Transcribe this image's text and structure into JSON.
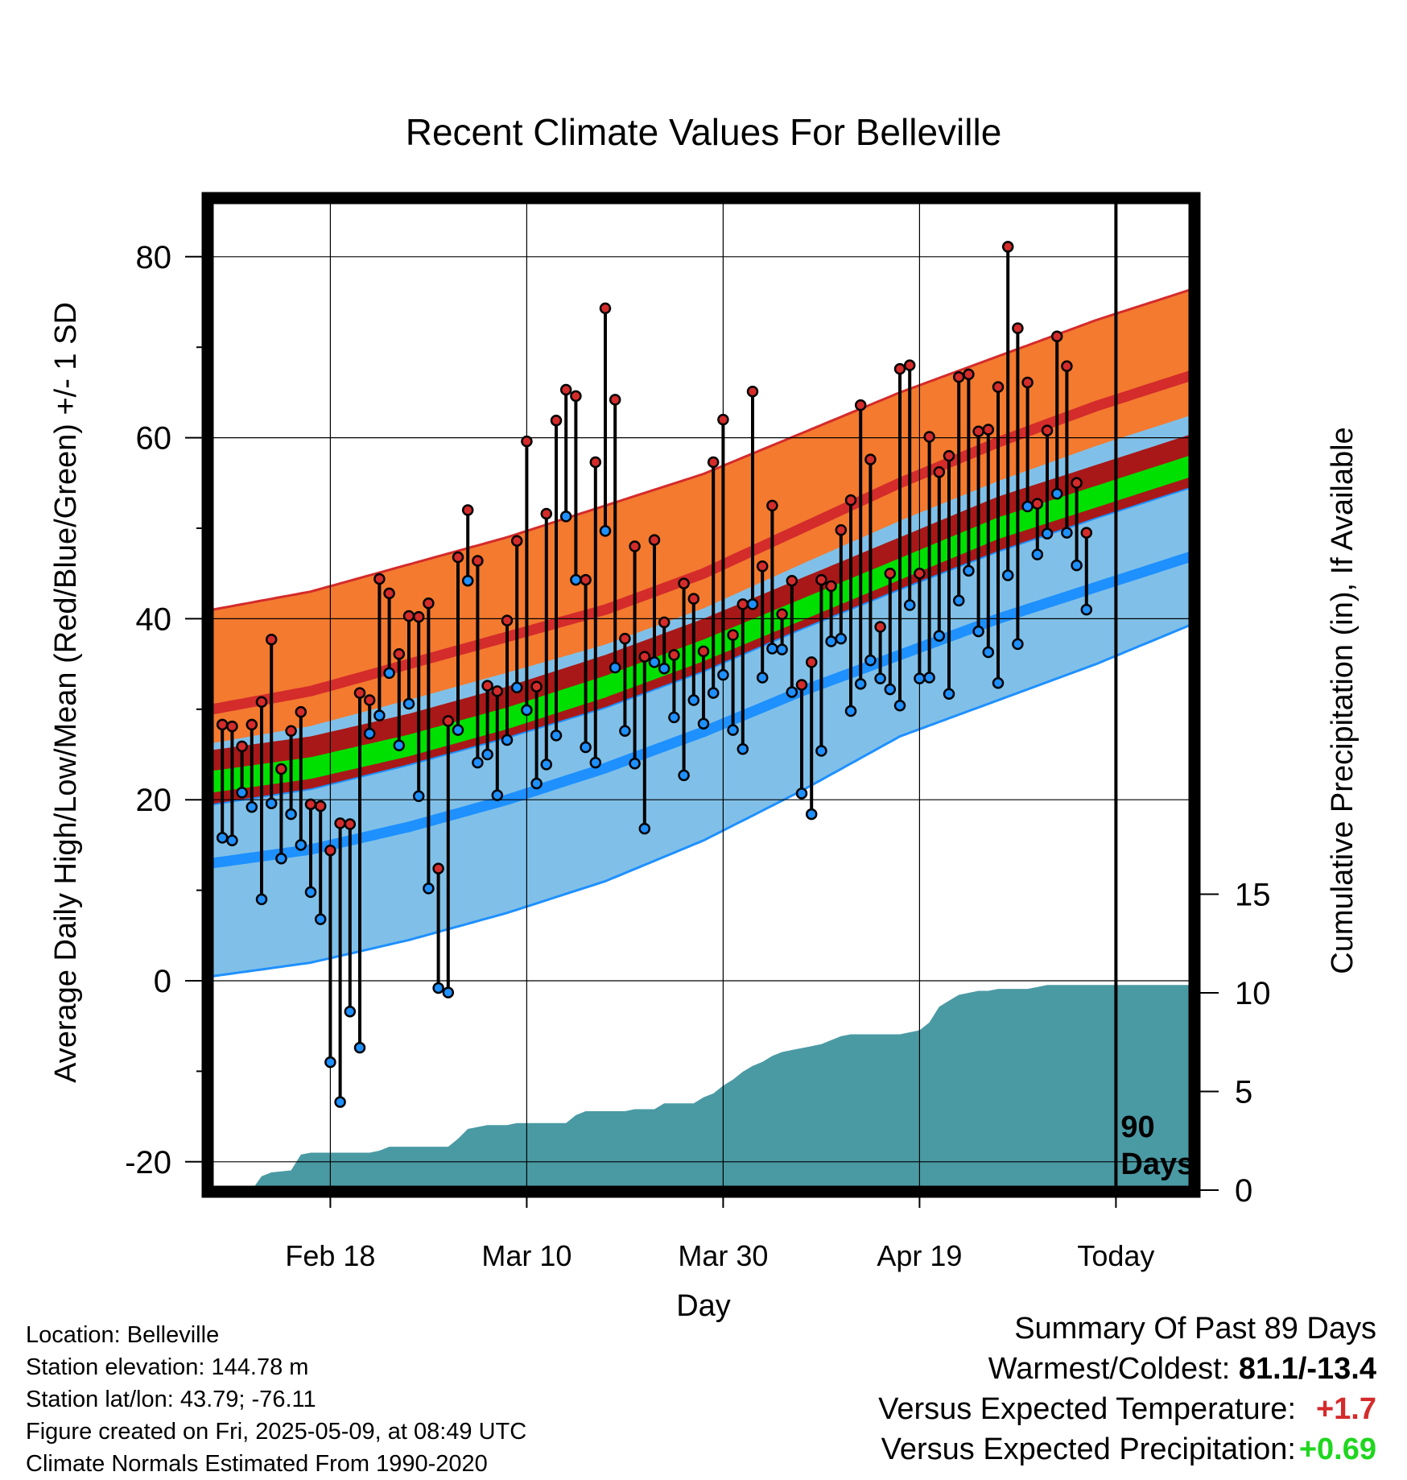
{
  "chart_data": {
    "type": "line",
    "title": "Recent Climate Values For Belleville",
    "xlabel": "Day",
    "ylabel": "Average Daily High/Low/Mean (Red/Blue/Green) +/- 1 SD",
    "y2label": "Cumulative Precipitation (in), If Available",
    "ylim": [
      -23,
      88
    ],
    "y2lim": [
      0,
      32
    ],
    "xlim": [
      0,
      100
    ],
    "x_day_of_first_point": 1,
    "yticks": [
      -20,
      0,
      20,
      40,
      60,
      80
    ],
    "y2ticks": [
      0,
      5,
      10,
      15
    ],
    "xticks": [
      {
        "day": 12,
        "label": "Feb 18"
      },
      {
        "day": 32,
        "label": "Mar 10"
      },
      {
        "day": 52,
        "label": "Mar 30"
      },
      {
        "day": 72,
        "label": "Apr 19"
      },
      {
        "day": 92,
        "label": "Today"
      }
    ],
    "today_day": 92,
    "today_label_lines": [
      "90",
      "Days"
    ],
    "grid": true,
    "colors": {
      "high_band": "#f37a2f",
      "high_edge": "#d42b2b",
      "high_mean": "#d42b2b",
      "low_band": "#80c0e8",
      "low_edge": "#1e90ff",
      "low_mean": "#1e90ff",
      "mean_band": "#00e000",
      "overlap_band": "#a81818",
      "precip": "#4a9aa4",
      "high_dot": "#d42b2b",
      "low_dot": "#1e90ff"
    },
    "normals": {
      "days": [
        0,
        10,
        20,
        30,
        40,
        50,
        60,
        70,
        80,
        90,
        100
      ],
      "high_mean": [
        30,
        32,
        35,
        38,
        41,
        45,
        50,
        55,
        59.5,
        63.5,
        67
      ],
      "high_upper": [
        41,
        43,
        46,
        49,
        52.5,
        56,
        60.5,
        65,
        69,
        73,
        76.5
      ],
      "low_mean": [
        13,
        14.5,
        17,
        20,
        23.5,
        27.5,
        32,
        36,
        40,
        43.5,
        47
      ],
      "low_lower": [
        0.5,
        2,
        4.5,
        7.5,
        11,
        15.5,
        21,
        27,
        31,
        35,
        39.5
      ],
      "mean_line": [
        22,
        23.5,
        26,
        29,
        32.5,
        36.5,
        41,
        45.5,
        50,
        53.5,
        57
      ]
    },
    "series": [
      {
        "name": "High",
        "values": [
          28.3,
          28.1,
          25.9,
          28.3,
          30.8,
          37.7,
          23.4,
          27.6,
          29.7,
          19.5,
          19.3,
          14.4,
          17.4,
          17.3,
          31.8,
          31.0,
          44.4,
          42.8,
          36.1,
          40.3,
          40.2,
          41.7,
          12.4,
          28.7,
          46.8,
          52.0,
          46.4,
          32.6,
          32.0,
          39.8,
          48.6,
          59.6,
          32.5,
          51.6,
          61.9,
          65.3,
          64.6,
          44.3,
          57.3,
          74.3,
          64.2,
          37.8,
          48.0,
          35.8,
          48.7,
          39.6,
          36.0,
          43.9,
          42.2,
          36.4,
          57.3,
          62.0,
          38.2,
          41.6,
          65.1,
          45.8,
          52.5,
          40.5,
          44.2,
          32.7,
          35.2,
          44.3,
          43.6,
          49.8,
          53.1,
          63.6,
          57.6,
          39.1,
          45.0,
          67.6,
          68.0,
          45.0,
          60.1,
          56.2,
          58.0,
          66.7,
          67.0,
          60.7,
          60.9,
          65.6,
          81.1,
          72.1,
          66.1,
          52.7,
          60.8,
          71.2,
          67.9,
          55.0,
          49.5
        ]
      },
      {
        "name": "Low",
        "values": [
          15.8,
          15.5,
          20.8,
          19.2,
          9.0,
          19.6,
          13.5,
          18.4,
          15.0,
          9.8,
          6.8,
          -9.0,
          -13.4,
          -3.4,
          -7.4,
          27.3,
          29.3,
          34.0,
          26.0,
          30.6,
          20.4,
          10.2,
          -0.8,
          -1.3,
          27.7,
          44.2,
          24.1,
          25.0,
          20.5,
          26.6,
          32.4,
          29.9,
          21.8,
          23.9,
          27.1,
          51.3,
          44.3,
          25.8,
          24.1,
          49.7,
          34.6,
          27.6,
          24.0,
          16.8,
          35.2,
          34.5,
          29.1,
          22.7,
          31.0,
          28.4,
          31.8,
          33.8,
          27.7,
          25.6,
          41.6,
          33.5,
          36.7,
          36.6,
          31.9,
          20.7,
          18.4,
          25.4,
          37.5,
          37.8,
          29.8,
          32.8,
          35.4,
          33.4,
          32.2,
          30.4,
          41.5,
          33.4,
          33.5,
          38.1,
          31.7,
          42.0,
          45.3,
          38.6,
          36.3,
          32.9,
          44.8,
          37.2,
          52.4,
          47.1,
          49.4,
          53.8,
          49.5,
          45.9,
          41.0
        ]
      }
    ],
    "precip_cumulative": {
      "days": [
        0,
        4,
        5,
        6,
        8,
        9,
        10,
        11,
        12,
        13,
        14,
        15,
        16,
        17,
        18,
        19,
        20,
        21,
        22,
        23,
        24,
        25,
        26,
        27,
        28,
        29,
        30,
        31,
        32,
        33,
        34,
        35,
        36,
        37,
        38,
        39,
        40,
        41,
        42,
        43,
        44,
        45,
        46,
        47,
        48,
        49,
        50,
        51,
        52,
        53,
        54,
        55,
        56,
        57,
        58,
        59,
        60,
        61,
        62,
        63,
        64,
        65,
        66,
        67,
        68,
        69,
        70,
        71,
        72,
        73,
        74,
        75,
        76,
        77,
        78,
        79,
        80,
        81,
        82,
        83,
        84,
        85,
        86,
        87,
        88,
        89,
        90,
        91,
        92,
        100
      ],
      "values": [
        0,
        0,
        0.7,
        0.9,
        1.0,
        1.8,
        1.9,
        1.9,
        1.9,
        1.9,
        1.9,
        1.9,
        1.9,
        2.0,
        2.2,
        2.2,
        2.2,
        2.2,
        2.2,
        2.2,
        2.2,
        2.6,
        3.1,
        3.2,
        3.3,
        3.3,
        3.3,
        3.4,
        3.4,
        3.4,
        3.4,
        3.4,
        3.4,
        3.8,
        4.0,
        4.0,
        4.0,
        4.0,
        4.0,
        4.1,
        4.1,
        4.1,
        4.4,
        4.4,
        4.4,
        4.4,
        4.7,
        4.9,
        5.3,
        5.6,
        6.0,
        6.3,
        6.5,
        6.8,
        7.0,
        7.1,
        7.2,
        7.3,
        7.4,
        7.6,
        7.8,
        7.9,
        7.9,
        7.9,
        7.9,
        7.9,
        7.9,
        8.0,
        8.1,
        8.5,
        9.3,
        9.6,
        9.9,
        10.0,
        10.1,
        10.1,
        10.2,
        10.2,
        10.2,
        10.2,
        10.3,
        10.4,
        10.4,
        10.4,
        10.4,
        10.4,
        10.4,
        10.4,
        10.4,
        10.4
      ]
    }
  },
  "info_left": {
    "location": "Location: Belleville",
    "elevation": "Station elevation: 144.78 m",
    "latlon": "Station lat/lon: 43.79; -76.11",
    "created": "Figure created on Fri, 2025-05-09, at 08:49 UTC",
    "normals": "Climate Normals Estimated From 1990-2020"
  },
  "summary": {
    "title": "Summary Of Past 89 Days",
    "warmest_label": "Warmest/Coldest: ",
    "warmest_value": "81.1/-13.4",
    "temp_label": "Versus Expected Temperature:",
    "temp_value": "+1.7",
    "precip_label": "Versus Expected Precipitation:",
    "precip_value": "+0.69"
  }
}
